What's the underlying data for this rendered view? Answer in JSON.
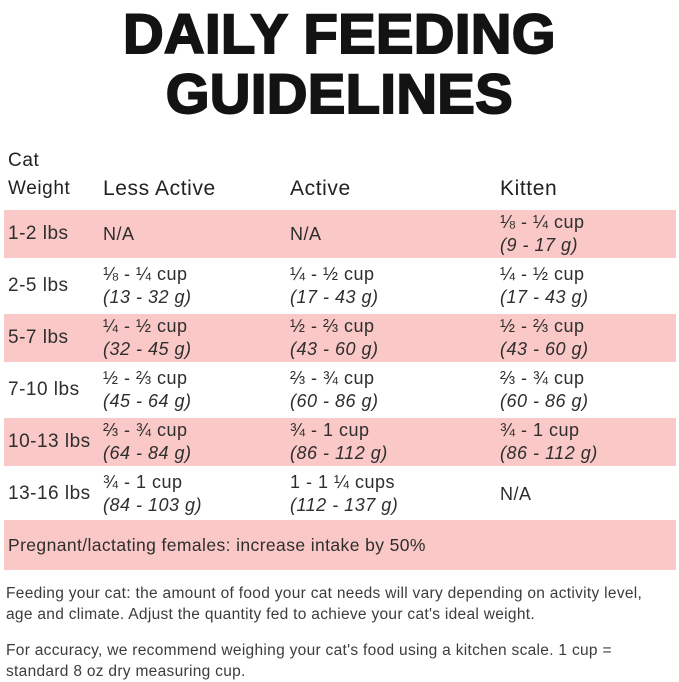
{
  "colors": {
    "row_pink": "#fac8c6"
  },
  "title": {
    "line1": "DAILY FEEDING",
    "line2": "GUIDELINES"
  },
  "table": {
    "header": {
      "col1_line1": "Cat",
      "col1_line2": "Weight",
      "col2": "Less Active",
      "col3": "Active",
      "col4": "Kitten"
    },
    "rows": [
      {
        "weight": "1-2 lbs",
        "cells": [
          {
            "line1": "N/A",
            "line2": ""
          },
          {
            "line1": "N/A",
            "line2": ""
          },
          {
            "line1": "⅛ - ¼ cup",
            "line2": "(9 - 17 g)"
          }
        ]
      },
      {
        "weight": "2-5 lbs",
        "cells": [
          {
            "line1": "⅛ - ¼ cup",
            "line2": "(13 - 32 g)"
          },
          {
            "line1": "¼ - ½ cup",
            "line2": "(17 - 43 g)"
          },
          {
            "line1": "¼ - ½ cup",
            "line2": "(17 - 43 g)"
          }
        ]
      },
      {
        "weight": "5-7 lbs",
        "cells": [
          {
            "line1": "¼ - ½ cup",
            "line2": "(32 - 45 g)"
          },
          {
            "line1": "½ - ⅔ cup",
            "line2": "(43 - 60 g)"
          },
          {
            "line1": "½ - ⅔ cup",
            "line2": "(43 - 60 g)"
          }
        ]
      },
      {
        "weight": "7-10 lbs",
        "cells": [
          {
            "line1": "½ - ⅔ cup",
            "line2": "(45 - 64 g)"
          },
          {
            "line1": "⅔ - ¾ cup",
            "line2": "(60 - 86 g)"
          },
          {
            "line1": "⅔ - ¾ cup",
            "line2": "(60 - 86 g)"
          }
        ]
      },
      {
        "weight": "10-13 lbs",
        "cells": [
          {
            "line1": "⅔ - ¾ cup",
            "line2": "(64 - 84 g)"
          },
          {
            "line1": "¾ - 1 cup",
            "line2": "(86 - 112 g)"
          },
          {
            "line1": "¾ - 1 cup",
            "line2": "(86 - 112 g)"
          }
        ]
      },
      {
        "weight": "13-16 lbs",
        "cells": [
          {
            "line1": "¾ - 1 cup",
            "line2": "(84 - 103 g)"
          },
          {
            "line1": "1 - 1 ¼ cups",
            "line2": "(112 - 137 g)"
          },
          {
            "line1": "N/A",
            "line2": ""
          }
        ]
      }
    ],
    "pregnant_note": "Pregnant/lactating females: increase intake by 50%"
  },
  "footer": {
    "para1": "Feeding your cat: the amount of food your cat needs will vary depending on activity level, age and climate. Adjust the quantity fed to achieve your cat's ideal weight.",
    "para2": "For accuracy, we recommend weighing your cat's food using a kitchen scale. 1 cup = standard 8 oz dry measuring cup."
  }
}
